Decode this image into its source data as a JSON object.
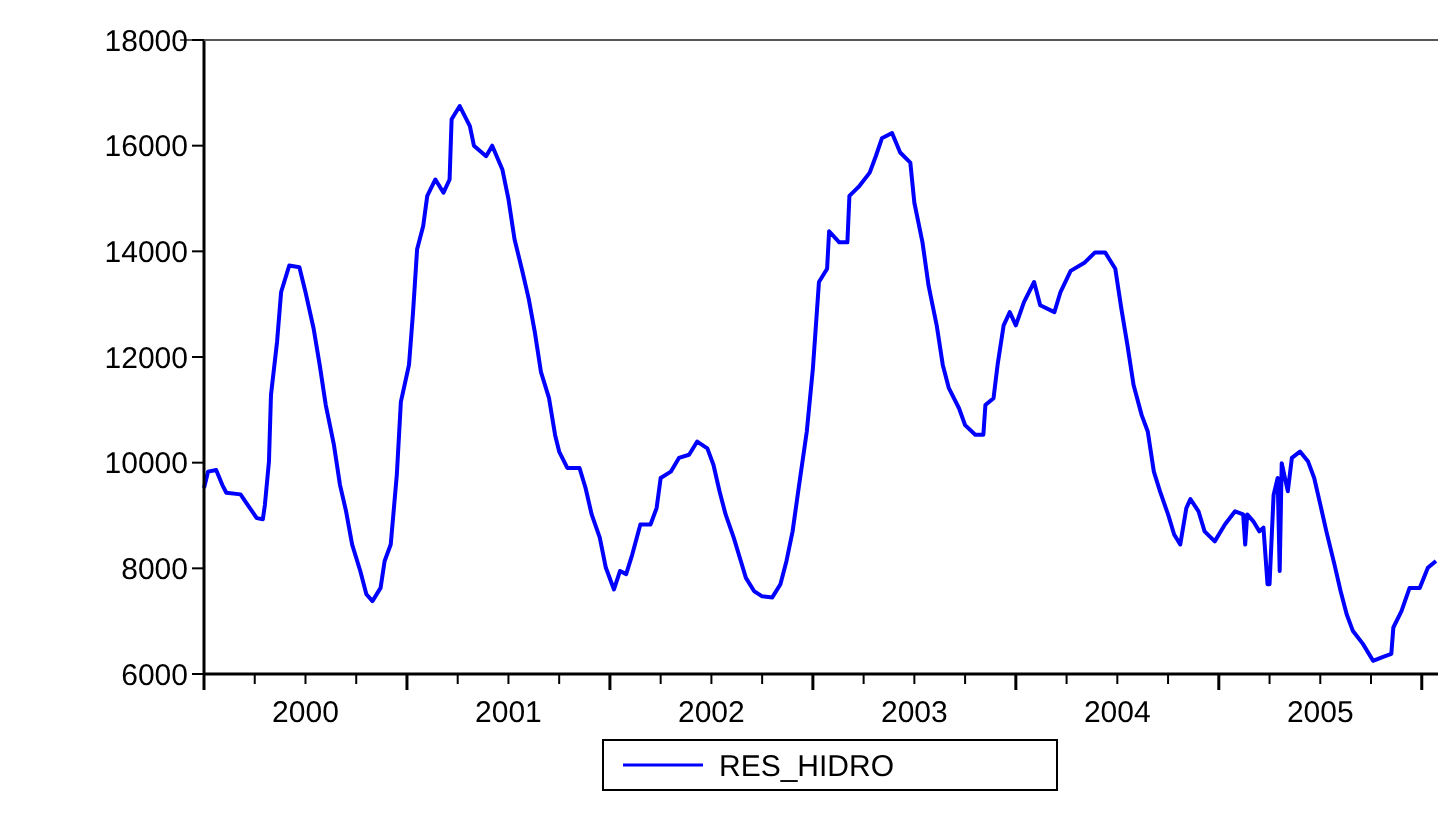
{
  "chart_data": {
    "type": "line",
    "xlim": [
      2000,
      2006.08
    ],
    "ylim": [
      6000,
      18000
    ],
    "yticks": [
      6000,
      8000,
      10000,
      12000,
      14000,
      16000,
      18000
    ],
    "xticks": [
      {
        "value": 2000,
        "label": null
      },
      {
        "value": 2000.25,
        "label": null
      },
      {
        "value": 2000.5,
        "label": "2000"
      },
      {
        "value": 2000.5,
        "label": null
      },
      {
        "value": 2000.75,
        "label": null
      },
      {
        "value": 2001,
        "label": null
      },
      {
        "value": 2001.25,
        "label": null
      },
      {
        "value": 2001.5,
        "label": "2001"
      },
      {
        "value": 2001.5,
        "label": null
      },
      {
        "value": 2001.75,
        "label": null
      },
      {
        "value": 2002,
        "label": null
      },
      {
        "value": 2002.25,
        "label": null
      },
      {
        "value": 2002.5,
        "label": "2002"
      },
      {
        "value": 2002.5,
        "label": null
      },
      {
        "value": 2002.75,
        "label": null
      },
      {
        "value": 2003,
        "label": null
      },
      {
        "value": 2003.25,
        "label": null
      },
      {
        "value": 2003.5,
        "label": "2003"
      },
      {
        "value": 2003.5,
        "label": null
      },
      {
        "value": 2003.75,
        "label": null
      },
      {
        "value": 2004,
        "label": null
      },
      {
        "value": 2004.25,
        "label": null
      },
      {
        "value": 2004.5,
        "label": "2004"
      },
      {
        "value": 2004.5,
        "label": null
      },
      {
        "value": 2004.75,
        "label": null
      },
      {
        "value": 2005,
        "label": null
      },
      {
        "value": 2005.25,
        "label": null
      },
      {
        "value": 2005.5,
        "label": "2005"
      },
      {
        "value": 2005.5,
        "label": null
      },
      {
        "value": 2005.75,
        "label": null
      },
      {
        "value": 2006,
        "label": null
      }
    ],
    "grid": false,
    "legend": "bottom",
    "marker": "none",
    "line_style": "solid",
    "series": [
      {
        "name": "RES_HIDRO",
        "color": "#0000ff",
        "x": [
          2000.0,
          2000.02,
          2000.06,
          2000.09,
          2000.11,
          2000.18,
          2000.21,
          2000.26,
          2000.29,
          2000.3,
          2000.32,
          2000.33,
          2000.36,
          2000.38,
          2000.42,
          2000.47,
          2000.5,
          2000.54,
          2000.57,
          2000.6,
          2000.64,
          2000.67,
          2000.7,
          2000.73,
          2000.77,
          2000.8,
          2000.83,
          2000.87,
          2000.89,
          2000.92,
          2000.95,
          2000.97,
          2001.01,
          2001.03,
          2001.05,
          2001.08,
          2001.1,
          2001.14,
          2001.18,
          2001.21,
          2001.22,
          2001.26,
          2001.31,
          2001.33,
          2001.39,
          2001.42,
          2001.47,
          2001.5,
          2001.53,
          2001.57,
          2001.6,
          2001.63,
          2001.66,
          2001.7,
          2001.73,
          2001.75,
          2001.79,
          2001.85,
          2001.88,
          2001.91,
          2001.95,
          2001.98,
          2002.02,
          2002.05,
          2002.08,
          2002.11,
          2002.15,
          2002.2,
          2002.23,
          2002.25,
          2002.3,
          2002.34,
          2002.39,
          2002.43,
          2002.48,
          2002.51,
          2002.54,
          2002.57,
          2002.61,
          2002.64,
          2002.67,
          2002.71,
          2002.75,
          2002.8,
          2002.84,
          2002.87,
          2002.9,
          2002.93,
          2002.97,
          2003.0,
          2003.03,
          2003.07,
          2003.08,
          2003.13,
          2003.17,
          2003.18,
          2003.23,
          2003.28,
          2003.31,
          2003.34,
          2003.39,
          2003.43,
          2003.48,
          2003.5,
          2003.54,
          2003.57,
          2003.61,
          2003.64,
          2003.67,
          2003.72,
          2003.75,
          2003.8,
          2003.84,
          2003.85,
          2003.89,
          2003.91,
          2003.94,
          2003.97,
          2004.0,
          2004.04,
          2004.09,
          2004.12,
          2004.19,
          2004.22,
          2004.27,
          2004.34,
          2004.39,
          2004.44,
          2004.49,
          2004.52,
          2004.55,
          2004.58,
          2004.62,
          2004.65,
          2004.68,
          2004.71,
          2004.75,
          2004.78,
          2004.81,
          2004.84,
          2004.86,
          2004.9,
          2004.93,
          2004.98,
          2005.03,
          2005.08,
          2005.12,
          2005.13,
          2005.14,
          2005.17,
          2005.2,
          2005.22,
          2005.24,
          2005.25,
          2005.27,
          2005.29,
          2005.3,
          2005.31,
          2005.34,
          2005.36,
          2005.4,
          2005.44,
          2005.47,
          2005.5,
          2005.53,
          2005.57,
          2005.6,
          2005.63,
          2005.66,
          2005.71,
          2005.76,
          2005.8,
          2005.85,
          2005.86,
          2005.9,
          2005.94,
          2005.99,
          2006.03,
          2006.07
        ],
        "values": [
          9520,
          9830,
          9860,
          9580,
          9430,
          9400,
          9230,
          8950,
          8930,
          9200,
          10020,
          11280,
          12290,
          13230,
          13730,
          13700,
          13230,
          12540,
          11850,
          11090,
          10340,
          9580,
          9080,
          8450,
          7950,
          7510,
          7380,
          7630,
          8140,
          8450,
          9770,
          11150,
          11850,
          12850,
          14040,
          14480,
          15050,
          15360,
          15110,
          15360,
          16500,
          16750,
          16370,
          16000,
          15800,
          16000,
          15550,
          14990,
          14230,
          13600,
          13100,
          12470,
          11720,
          11220,
          10520,
          10210,
          9900,
          9900,
          9520,
          9020,
          8580,
          8010,
          7600,
          7950,
          7890,
          8260,
          8830,
          8830,
          9140,
          9710,
          9830,
          10090,
          10150,
          10400,
          10270,
          9960,
          9460,
          9020,
          8580,
          8200,
          7820,
          7570,
          7470,
          7450,
          7700,
          8140,
          8700,
          9520,
          10590,
          11780,
          13420,
          13670,
          14380,
          14170,
          14170,
          15050,
          15240,
          15490,
          15800,
          16140,
          16240,
          15870,
          15680,
          14920,
          14170,
          13350,
          12600,
          11850,
          11410,
          11030,
          10710,
          10530,
          10530,
          11090,
          11220,
          11850,
          12600,
          12850,
          12600,
          13040,
          13420,
          12980,
          12850,
          13230,
          13630,
          13790,
          13980,
          13980,
          13670,
          12910,
          12220,
          11470,
          10900,
          10590,
          9830,
          9460,
          9020,
          8640,
          8450,
          9140,
          9310,
          9080,
          8700,
          8510,
          8830,
          9080,
          9020,
          8450,
          9020,
          8890,
          8700,
          8770,
          7700,
          7700,
          9390,
          9710,
          7950,
          9990,
          9460,
          10090,
          10210,
          10020,
          9710,
          9210,
          8700,
          8070,
          7570,
          7130,
          6820,
          6570,
          6250,
          6310,
          6380,
          6880,
          7190,
          7630,
          7630,
          8010,
          8140
        ]
      }
    ]
  }
}
